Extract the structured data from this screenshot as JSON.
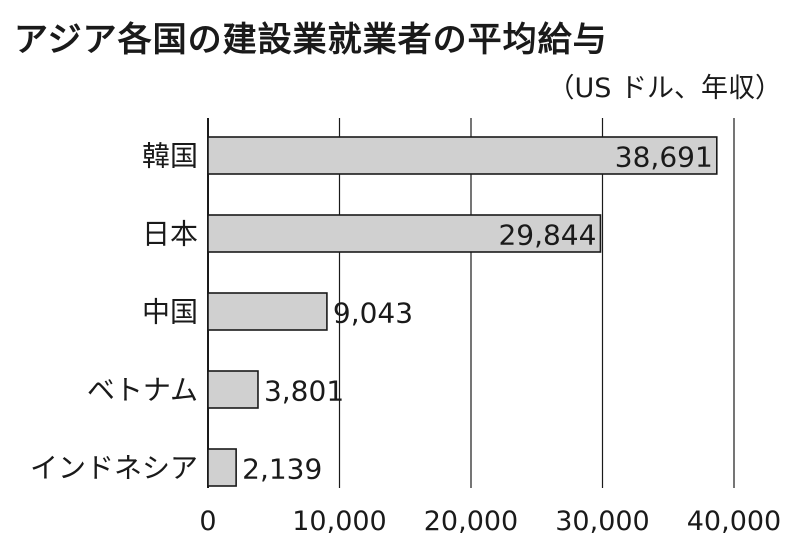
{
  "title": "アジア各国の建設業就業者の平均給与",
  "unit": "（US ドル、年収）",
  "chart_data": {
    "type": "bar",
    "orientation": "horizontal",
    "title": "アジア各国の建設業就業者の平均給与",
    "unit": "（US ドル、年収）",
    "categories": [
      "韓国",
      "日本",
      "中国",
      "ベトナム",
      "インドネシア"
    ],
    "values": [
      38691,
      29844,
      9043,
      3801,
      2139
    ],
    "value_labels": [
      "38,691",
      "29,844",
      "9,043",
      "3,801",
      "2,139"
    ],
    "xlim": [
      0,
      40000
    ],
    "ticks": [
      0,
      10000,
      20000,
      30000,
      40000
    ],
    "tick_labels": [
      "0",
      "10,000",
      "20,000",
      "30,000",
      "40,000"
    ],
    "grid": "vertical",
    "bar_color": "#d0d0d0",
    "bar_edge_color": "#1a1a1a"
  }
}
